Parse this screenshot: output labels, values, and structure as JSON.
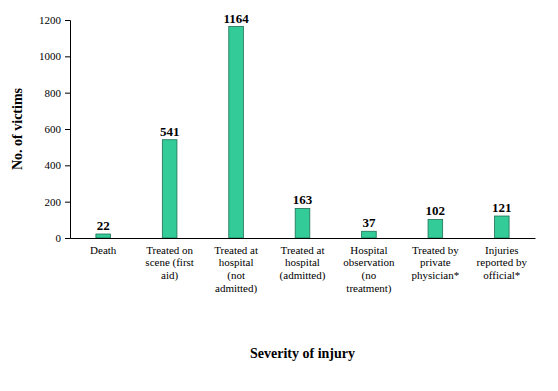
{
  "chart_data": {
    "type": "bar",
    "x_label": "Severity of injury",
    "y_label": "No. of victims",
    "categories": [
      "Death",
      "Treated on scene (first aid)",
      "Treated at hospital (not admitted)",
      "Treated at hospital (admitted)",
      "Hospital observation (no treatment)",
      "Treated by private physician*",
      "Injuries reported by official*"
    ],
    "values": [
      22,
      541,
      1164,
      163,
      37,
      102,
      121
    ],
    "color": "#33cc99",
    "ylim": [
      0,
      1200
    ],
    "yticks": [
      0,
      200,
      400,
      600,
      800,
      1000,
      1200
    ],
    "grid": false,
    "data_labels": true
  }
}
